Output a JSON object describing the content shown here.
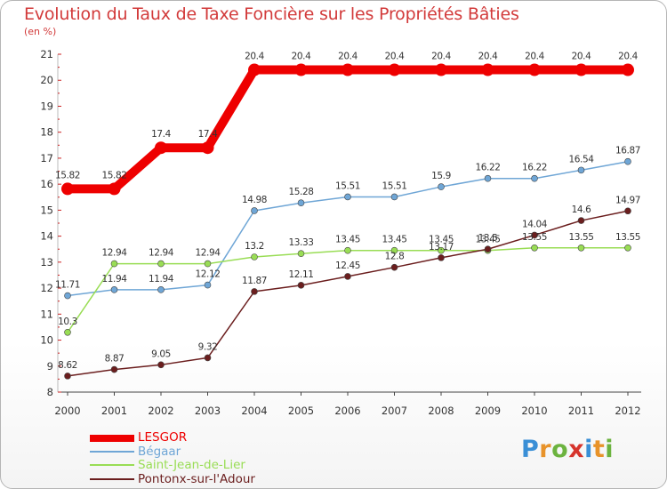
{
  "title": "Evolution du Taux de Taxe Foncière sur les Propriétés Bâties",
  "unit": "(en %)",
  "logo": {
    "letters": [
      "P",
      "r",
      "o",
      "x",
      "i",
      "t",
      "i"
    ],
    "colors": [
      "#3a8fd6",
      "#e8932a",
      "#6cb33f",
      "#d6342c",
      "#3a8fd6",
      "#e8932a",
      "#6cb33f"
    ]
  },
  "chart_data": {
    "type": "line",
    "title": "Evolution du Taux de Taxe Foncière sur les Propriétés Bâties",
    "ylabel": "(en %)",
    "xlabel": "",
    "x": [
      "2000",
      "2001",
      "2002",
      "2003",
      "2004",
      "2005",
      "2006",
      "2007",
      "2008",
      "2009",
      "2010",
      "2011",
      "2012"
    ],
    "ylim": [
      8,
      21
    ],
    "yticks": [
      "8",
      "9",
      "10",
      "11",
      "12",
      "13",
      "14",
      "15",
      "16",
      "17",
      "18",
      "19",
      "20",
      "21"
    ],
    "grid": false,
    "legend": "bottom-left",
    "series": [
      {
        "name": "LESGOR",
        "color": "#ee0000",
        "width": "thick",
        "values": [
          15.82,
          15.82,
          17.4,
          17.4,
          20.4,
          20.4,
          20.4,
          20.4,
          20.4,
          20.4,
          20.4,
          20.4,
          20.4
        ],
        "labels": [
          "15.82",
          "15.82",
          "17.4",
          "17.4",
          "20.4",
          "20.4",
          "20.4",
          "20.4",
          "20.4",
          "20.4",
          "20.4",
          "20.4",
          "20.4"
        ]
      },
      {
        "name": "Bégaar",
        "color": "#6fa6d6",
        "width": "thin",
        "values": [
          11.71,
          11.94,
          11.94,
          12.12,
          14.98,
          15.28,
          15.51,
          15.51,
          15.9,
          16.22,
          16.22,
          16.54,
          16.87
        ],
        "labels": [
          "11.71",
          "11.94",
          "11.94",
          "12.12",
          "14.98",
          "15.28",
          "15.51",
          "15.51",
          "15.9",
          "16.22",
          "16.22",
          "16.54",
          "16.87"
        ]
      },
      {
        "name": "Saint-Jean-de-Lier",
        "color": "#99dd55",
        "width": "thin",
        "values": [
          10.3,
          12.94,
          12.94,
          12.94,
          13.2,
          13.33,
          13.45,
          13.45,
          13.45,
          13.45,
          13.55,
          13.55,
          13.55
        ],
        "labels": [
          "10.3",
          "12.94",
          "12.94",
          "12.94",
          "13.2",
          "13.33",
          "13.45",
          "13.45",
          "13.45",
          "13.45",
          "13.55",
          "13.55",
          "13.55"
        ]
      },
      {
        "name": "Pontonx-sur-l'Adour",
        "color": "#6b1e1e",
        "width": "thin",
        "values": [
          8.62,
          8.87,
          9.05,
          9.32,
          11.87,
          12.11,
          12.45,
          12.8,
          13.17,
          13.5,
          14.04,
          14.6,
          14.97
        ],
        "labels": [
          "8.62",
          "8.87",
          "9.05",
          "9.32",
          "11.87",
          "12.11",
          "12.45",
          "12.8",
          "13.17",
          "13.5",
          "14.04",
          "14.6",
          "14.97"
        ]
      }
    ]
  }
}
